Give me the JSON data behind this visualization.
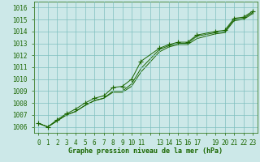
{
  "bg_color": "#cce8e8",
  "grid_color": "#7fbfbf",
  "line_color": "#1a6600",
  "text_color": "#1a6600",
  "xlabel": "Graphe pression niveau de la mer (hPa)",
  "ylim": [
    1005.5,
    1016.5
  ],
  "xlim": [
    -0.5,
    23.5
  ],
  "yticks": [
    1006,
    1007,
    1008,
    1009,
    1010,
    1011,
    1012,
    1013,
    1014,
    1015,
    1016
  ],
  "series": [
    [
      1006.3,
      1006.0,
      1006.6,
      1007.1,
      1007.5,
      1008.0,
      1008.4,
      1008.6,
      1009.3,
      1009.4,
      1010.0,
      1011.5,
      1012.6,
      1012.9,
      1013.1,
      1013.1,
      1013.7,
      1014.0,
      1014.1,
      1015.1,
      1015.2,
      1015.7
    ],
    [
      1006.3,
      1006.0,
      1006.5,
      1007.0,
      1007.3,
      1007.8,
      1008.2,
      1008.4,
      1009.0,
      1009.0,
      1009.6,
      1010.9,
      1012.5,
      1012.8,
      1013.0,
      1013.0,
      1013.6,
      1013.9,
      1014.0,
      1015.0,
      1015.1,
      1015.6
    ],
    [
      1006.3,
      1006.0,
      1006.5,
      1007.0,
      1007.3,
      1007.8,
      1008.2,
      1008.4,
      1008.9,
      1008.9,
      1009.4,
      1010.6,
      1012.3,
      1012.7,
      1012.9,
      1012.9,
      1013.4,
      1013.8,
      1013.9,
      1014.9,
      1015.0,
      1015.5
    ]
  ],
  "x_data": [
    0,
    1,
    2,
    3,
    4,
    5,
    6,
    7,
    8,
    9,
    10,
    11,
    13,
    14,
    15,
    16,
    17,
    19,
    20,
    21,
    22,
    23
  ],
  "show_ticks": [
    0,
    1,
    2,
    3,
    4,
    5,
    6,
    7,
    8,
    9,
    10,
    11,
    13,
    14,
    15,
    16,
    17,
    19,
    20,
    21,
    22,
    23
  ],
  "marker_size": 4,
  "linewidth": 0.7
}
